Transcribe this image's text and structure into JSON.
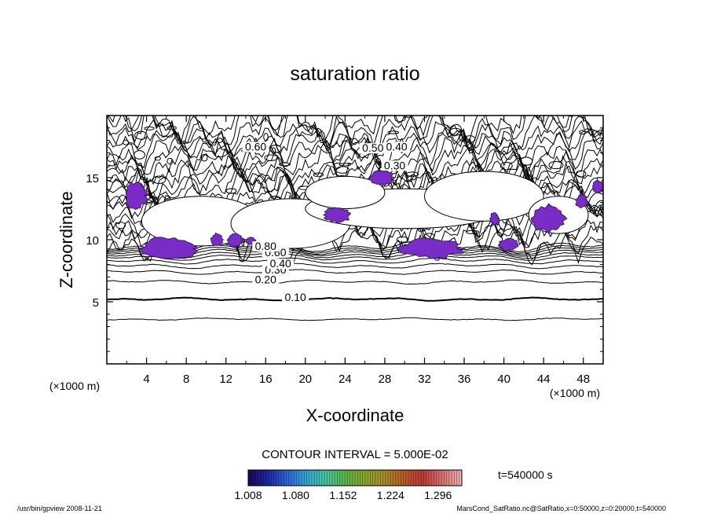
{
  "chart_data": {
    "type": "contour",
    "title": "saturation ratio",
    "xlabel": "X-coordinate",
    "ylabel": "Z-coordinate",
    "x_unit": "(×1000 m)",
    "y_unit": "(×1000 m)",
    "xlim": [
      0,
      50
    ],
    "ylim": [
      0,
      20
    ],
    "xticks": [
      4,
      8,
      12,
      16,
      20,
      24,
      28,
      32,
      36,
      40,
      44,
      48
    ],
    "yticks": [
      5,
      10,
      15
    ],
    "contour_interval_text": "CONTOUR INTERVAL = 5.000E-02",
    "time_text": "t=540000 s",
    "contour_labels": [
      {
        "text": "0.10",
        "x": 19.0,
        "y": 5.2
      },
      {
        "text": "0.20",
        "x": 16.0,
        "y": 6.6
      },
      {
        "text": "0.30",
        "x": 17.0,
        "y": 7.4
      },
      {
        "text": "0.40",
        "x": 17.5,
        "y": 7.9
      },
      {
        "text": "0.60",
        "x": 17.0,
        "y": 8.8
      },
      {
        "text": "0.80",
        "x": 16.0,
        "y": 9.3
      },
      {
        "text": "0.60",
        "x": 15.0,
        "y": 17.3
      },
      {
        "text": "0.50",
        "x": 26.8,
        "y": 17.2
      },
      {
        "text": "0.40",
        "x": 29.2,
        "y": 17.3
      },
      {
        "text": "0.30",
        "x": 29.0,
        "y": 15.8
      }
    ],
    "supersaturated_regions": [
      {
        "x": 1.8,
        "y": 14.7,
        "w": 2.2,
        "h": 2.2
      },
      {
        "x": 3.3,
        "y": 10.2,
        "w": 5.8,
        "h": 1.8
      },
      {
        "x": 10.5,
        "y": 10.5,
        "w": 1.2,
        "h": 1.0
      },
      {
        "x": 12.1,
        "y": 10.5,
        "w": 1.6,
        "h": 1.1
      },
      {
        "x": 14.0,
        "y": 10.2,
        "w": 1.0,
        "h": 0.6
      },
      {
        "x": 21.8,
        "y": 12.6,
        "w": 2.8,
        "h": 1.2
      },
      {
        "x": 26.5,
        "y": 15.6,
        "w": 2.4,
        "h": 1.2
      },
      {
        "x": 29.5,
        "y": 10.1,
        "w": 6.4,
        "h": 1.6
      },
      {
        "x": 38.6,
        "y": 12.2,
        "w": 0.9,
        "h": 1.0
      },
      {
        "x": 39.5,
        "y": 10.1,
        "w": 2.0,
        "h": 1.0
      },
      {
        "x": 42.7,
        "y": 12.8,
        "w": 3.6,
        "h": 2.2
      },
      {
        "x": 47.2,
        "y": 13.6,
        "w": 1.2,
        "h": 1.0
      },
      {
        "x": 48.9,
        "y": 14.8,
        "w": 1.1,
        "h": 1.1
      }
    ],
    "colorbar": {
      "ticks": [
        "1.008",
        "1.080",
        "1.152",
        "1.224",
        "1.296"
      ],
      "min": 1.008,
      "max": 1.332,
      "colors": [
        "#1a0a5a",
        "#1e2aa8",
        "#2e6ad8",
        "#3aa8d8",
        "#4ac8a0",
        "#5ab84a",
        "#8aa830",
        "#a8902a",
        "#b8602a",
        "#c03a3a",
        "#d87070",
        "#f0b0b0"
      ]
    }
  },
  "footer": {
    "left": "/usr/bin/gpview  2008-11-21",
    "right": "MarsCond_SatRatio.nc@SatRatio,x=0:50000,z=0:20000,t=540000"
  }
}
